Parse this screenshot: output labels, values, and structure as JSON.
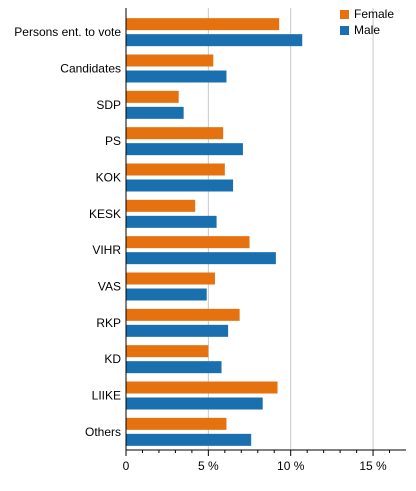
{
  "chart_data": {
    "type": "bar",
    "orientation": "horizontal",
    "categories": [
      "Persons ent. to vote",
      "Candidates",
      "SDP",
      "PS",
      "KOK",
      "KESK",
      "VIHR",
      "VAS",
      "RKP",
      "KD",
      "LIIKE",
      "Others"
    ],
    "series": [
      {
        "name": "Female",
        "color": "#e5720f",
        "values": [
          9.3,
          5.3,
          3.2,
          5.9,
          6.0,
          4.2,
          7.5,
          5.4,
          6.9,
          5.0,
          9.2,
          6.1
        ]
      },
      {
        "name": "Male",
        "color": "#1a6faf",
        "values": [
          10.7,
          6.1,
          3.5,
          7.1,
          6.5,
          5.5,
          9.1,
          4.9,
          6.2,
          5.8,
          8.3,
          7.6
        ]
      }
    ],
    "xlim": [
      0,
      17
    ],
    "xticks": [
      0,
      5,
      10,
      15
    ],
    "xtick_labels": [
      "0",
      "5 %",
      "10 %",
      "15 %"
    ],
    "grid": "vertical",
    "legend_placement": "top-right"
  }
}
